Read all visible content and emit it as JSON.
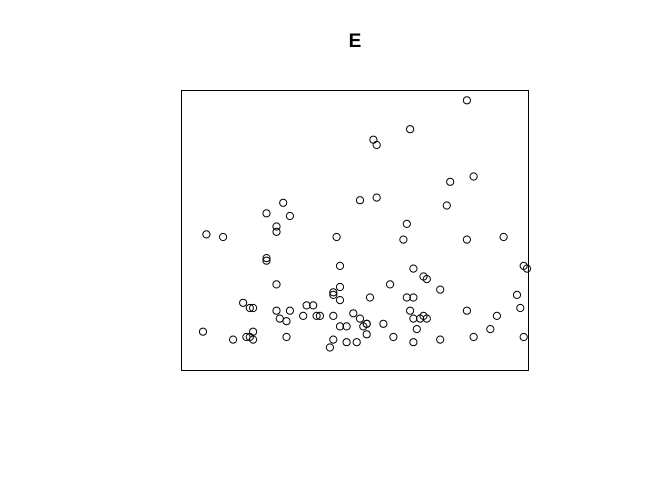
{
  "chart_data": {
    "type": "scatter",
    "title": "E",
    "xlabel": "",
    "ylabel": "",
    "axes_shown": false,
    "xlim": [
      0,
      1
    ],
    "ylim": [
      0,
      1
    ],
    "marker": "open-circle",
    "points": [
      {
        "x": 0.82,
        "y": 0.98
      },
      {
        "x": 0.65,
        "y": 0.87
      },
      {
        "x": 0.54,
        "y": 0.83
      },
      {
        "x": 0.55,
        "y": 0.81
      },
      {
        "x": 0.77,
        "y": 0.67
      },
      {
        "x": 0.84,
        "y": 0.69
      },
      {
        "x": 0.76,
        "y": 0.58
      },
      {
        "x": 0.5,
        "y": 0.6
      },
      {
        "x": 0.55,
        "y": 0.61
      },
      {
        "x": 0.27,
        "y": 0.59
      },
      {
        "x": 0.22,
        "y": 0.55
      },
      {
        "x": 0.29,
        "y": 0.54
      },
      {
        "x": 0.25,
        "y": 0.5
      },
      {
        "x": 0.25,
        "y": 0.48
      },
      {
        "x": 0.64,
        "y": 0.51
      },
      {
        "x": 0.04,
        "y": 0.47
      },
      {
        "x": 0.09,
        "y": 0.46
      },
      {
        "x": 0.43,
        "y": 0.46
      },
      {
        "x": 0.63,
        "y": 0.45
      },
      {
        "x": 0.82,
        "y": 0.45
      },
      {
        "x": 0.93,
        "y": 0.46
      },
      {
        "x": 0.22,
        "y": 0.38
      },
      {
        "x": 0.22,
        "y": 0.37
      },
      {
        "x": 0.44,
        "y": 0.35
      },
      {
        "x": 0.66,
        "y": 0.34
      },
      {
        "x": 0.69,
        "y": 0.31
      },
      {
        "x": 0.7,
        "y": 0.3
      },
      {
        "x": 0.99,
        "y": 0.35
      },
      {
        "x": 1.0,
        "y": 0.34
      },
      {
        "x": 0.25,
        "y": 0.28
      },
      {
        "x": 0.44,
        "y": 0.27
      },
      {
        "x": 0.59,
        "y": 0.28
      },
      {
        "x": 0.74,
        "y": 0.26
      },
      {
        "x": 0.42,
        "y": 0.25
      },
      {
        "x": 0.42,
        "y": 0.24
      },
      {
        "x": 0.53,
        "y": 0.23
      },
      {
        "x": 0.64,
        "y": 0.23
      },
      {
        "x": 0.66,
        "y": 0.23
      },
      {
        "x": 0.97,
        "y": 0.24
      },
      {
        "x": 0.44,
        "y": 0.22
      },
      {
        "x": 0.15,
        "y": 0.21
      },
      {
        "x": 0.34,
        "y": 0.2
      },
      {
        "x": 0.36,
        "y": 0.2
      },
      {
        "x": 0.18,
        "y": 0.19
      },
      {
        "x": 0.17,
        "y": 0.19
      },
      {
        "x": 0.25,
        "y": 0.18
      },
      {
        "x": 0.29,
        "y": 0.18
      },
      {
        "x": 0.82,
        "y": 0.18
      },
      {
        "x": 0.98,
        "y": 0.19
      },
      {
        "x": 0.48,
        "y": 0.17
      },
      {
        "x": 0.65,
        "y": 0.18
      },
      {
        "x": 0.33,
        "y": 0.16
      },
      {
        "x": 0.37,
        "y": 0.16
      },
      {
        "x": 0.38,
        "y": 0.16
      },
      {
        "x": 0.42,
        "y": 0.16
      },
      {
        "x": 0.69,
        "y": 0.16
      },
      {
        "x": 0.26,
        "y": 0.15
      },
      {
        "x": 0.28,
        "y": 0.14
      },
      {
        "x": 0.5,
        "y": 0.15
      },
      {
        "x": 0.52,
        "y": 0.13
      },
      {
        "x": 0.66,
        "y": 0.15
      },
      {
        "x": 0.68,
        "y": 0.15
      },
      {
        "x": 0.7,
        "y": 0.15
      },
      {
        "x": 0.91,
        "y": 0.16
      },
      {
        "x": 0.44,
        "y": 0.12
      },
      {
        "x": 0.46,
        "y": 0.12
      },
      {
        "x": 0.51,
        "y": 0.12
      },
      {
        "x": 0.52,
        "y": 0.13
      },
      {
        "x": 0.57,
        "y": 0.13
      },
      {
        "x": 0.67,
        "y": 0.11
      },
      {
        "x": 0.89,
        "y": 0.11
      },
      {
        "x": 0.18,
        "y": 0.1
      },
      {
        "x": 0.03,
        "y": 0.1
      },
      {
        "x": 0.16,
        "y": 0.08
      },
      {
        "x": 0.17,
        "y": 0.08
      },
      {
        "x": 0.18,
        "y": 0.07
      },
      {
        "x": 0.12,
        "y": 0.07
      },
      {
        "x": 0.28,
        "y": 0.08
      },
      {
        "x": 0.52,
        "y": 0.09
      },
      {
        "x": 0.6,
        "y": 0.08
      },
      {
        "x": 0.74,
        "y": 0.07
      },
      {
        "x": 0.84,
        "y": 0.08
      },
      {
        "x": 0.99,
        "y": 0.08
      },
      {
        "x": 0.42,
        "y": 0.07
      },
      {
        "x": 0.46,
        "y": 0.06
      },
      {
        "x": 0.49,
        "y": 0.06
      },
      {
        "x": 0.66,
        "y": 0.06
      },
      {
        "x": 0.41,
        "y": 0.04
      }
    ]
  }
}
